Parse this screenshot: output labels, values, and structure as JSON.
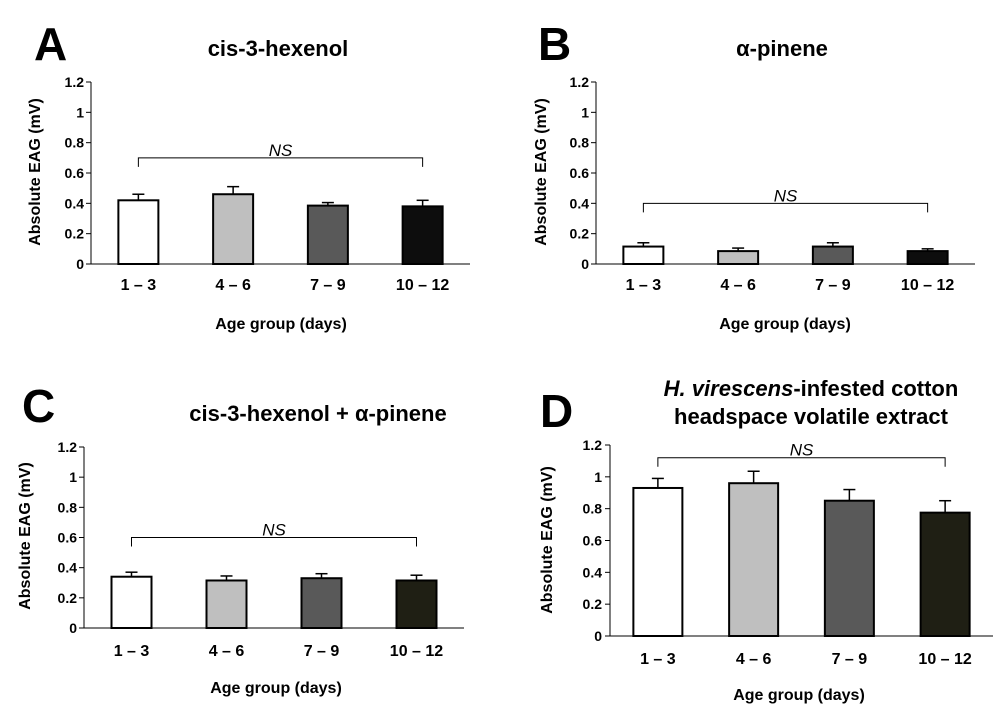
{
  "chart_data": [
    {
      "panel": "A",
      "type": "bar",
      "title": "cis-3-hexenol",
      "title_lines": [
        "cis-3-hexenol"
      ],
      "title_italic": "",
      "xlabel": "Age group (days)",
      "ylabel": "Absolute EAG (mV)",
      "ylim": [
        0,
        1.2
      ],
      "yticks": [
        "0",
        "0.2",
        "0.4",
        "0.6",
        "0.8",
        "1",
        "1.2"
      ],
      "categories": [
        "1 – 3",
        "4 – 6",
        "7 – 9",
        "10 – 12"
      ],
      "values": [
        0.42,
        0.46,
        0.385,
        0.38
      ],
      "errors": [
        0.04,
        0.05,
        0.02,
        0.04
      ],
      "colors": [
        "#ffffff",
        "#bfbfbf",
        "#595959",
        "#0d0d0d"
      ],
      "annotation": "NS",
      "annotation_y": 0.7
    },
    {
      "panel": "B",
      "type": "bar",
      "title": "α-pinene",
      "title_lines": [
        "α-pinene"
      ],
      "title_italic": "",
      "xlabel": "Age group (days)",
      "ylabel": "Absolute EAG (mV)",
      "ylim": [
        0,
        1.2
      ],
      "yticks": [
        "0",
        "0.2",
        "0.4",
        "0.6",
        "0.8",
        "1",
        "1.2"
      ],
      "categories": [
        "1 – 3",
        "4 – 6",
        "7 – 9",
        "10 – 12"
      ],
      "values": [
        0.115,
        0.085,
        0.115,
        0.085
      ],
      "errors": [
        0.025,
        0.02,
        0.025,
        0.015
      ],
      "colors": [
        "#ffffff",
        "#bfbfbf",
        "#595959",
        "#0d0d0d"
      ],
      "annotation": "NS",
      "annotation_y": 0.4
    },
    {
      "panel": "C",
      "type": "bar",
      "title": "cis-3-hexenol + α-pinene",
      "title_lines": [
        "cis-3-hexenol + α-pinene"
      ],
      "title_italic": "",
      "xlabel": "Age group (days)",
      "ylabel": "Absolute EAG (mV)",
      "ylim": [
        0,
        1.2
      ],
      "yticks": [
        "0",
        "0.2",
        "0.4",
        "0.6",
        "0.8",
        "1",
        "1.2"
      ],
      "categories": [
        "1 – 3",
        "4 – 6",
        "7 – 9",
        "10 – 12"
      ],
      "values": [
        0.34,
        0.315,
        0.33,
        0.315
      ],
      "errors": [
        0.03,
        0.03,
        0.03,
        0.035
      ],
      "colors": [
        "#ffffff",
        "#bfbfbf",
        "#595959",
        "#1f1f14"
      ],
      "annotation": "NS",
      "annotation_y": 0.6
    },
    {
      "panel": "D",
      "type": "bar",
      "title": "H. virescens-infested cotton headspace volatile extract",
      "title_lines": [
        "-infested cotton",
        "headspace volatile extract"
      ],
      "title_italic": "H. virescens",
      "xlabel": "Age group (days)",
      "ylabel": "Absolute EAG (mV)",
      "ylim": [
        0,
        1.2
      ],
      "yticks": [
        "0",
        "0.2",
        "0.4",
        "0.6",
        "0.8",
        "1",
        "1.2"
      ],
      "categories": [
        "1 – 3",
        "4 – 6",
        "7 – 9",
        "10 – 12"
      ],
      "values": [
        0.93,
        0.96,
        0.85,
        0.775
      ],
      "errors": [
        0.06,
        0.075,
        0.07,
        0.075
      ],
      "colors": [
        "#ffffff",
        "#bfbfbf",
        "#595959",
        "#1f1f14"
      ],
      "annotation": "NS",
      "annotation_y": 1.12
    }
  ]
}
